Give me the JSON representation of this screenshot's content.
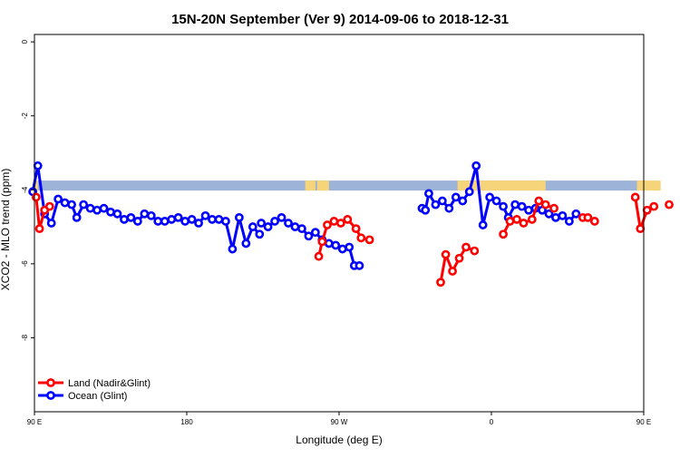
{
  "chart_data": {
    "type": "line",
    "title": "15N-20N September (Ver 9)   2014-09-06 to 2018-12-31",
    "xlabel": "Longitude (deg E)",
    "ylabel": "XCO2 - MLO trend (ppm)",
    "xlim": [
      90,
      450
    ],
    "ylim": [
      -10,
      0.2
    ],
    "x_ticks": [
      {
        "value": 90,
        "label": "90 E"
      },
      {
        "value": 180,
        "label": "180"
      },
      {
        "value": 270,
        "label": "90 W"
      },
      {
        "value": 360,
        "label": "0"
      },
      {
        "value": 450,
        "label": "90 E"
      },
      {
        "value": 540,
        "label": "180"
      }
    ],
    "y_ticks": [
      {
        "value": 0,
        "label": "0"
      },
      {
        "value": -2,
        "label": "-2"
      },
      {
        "value": -4,
        "label": "-4"
      },
      {
        "value": -6,
        "label": "-6"
      },
      {
        "value": -8,
        "label": "-8"
      }
    ],
    "legend_position": "bottom-left",
    "colors": {
      "land": "#ff0000",
      "ocean": "#0000ff",
      "map_ocean": "#9db4d8",
      "map_land": "#f5d47a"
    },
    "land_mask": {
      "y_range": [
        -3.75,
        -4.02
      ],
      "land_x_segments": [
        [
          90,
          92
        ],
        [
          250,
          256
        ],
        [
          257,
          264
        ],
        [
          340,
          392
        ],
        [
          446,
          460
        ]
      ]
    },
    "series": [
      {
        "name": "Land (Nadir&Glint)",
        "key": "land",
        "segments": [
          [
            [
              91,
              -4.2
            ],
            [
              93,
              -5.05
            ],
            [
              96,
              -4.55
            ],
            [
              99,
              -4.45
            ]
          ],
          [
            [
              258,
              -5.8
            ],
            [
              260,
              -5.4
            ],
            [
              263,
              -4.95
            ],
            [
              267,
              -4.85
            ],
            [
              271,
              -4.9
            ],
            [
              275,
              -4.8
            ],
            [
              280,
              -5.05
            ],
            [
              283,
              -5.3
            ],
            [
              288,
              -5.35
            ]
          ],
          [
            [
              330,
              -6.5
            ],
            [
              333,
              -5.75
            ],
            [
              337,
              -6.2
            ],
            [
              341,
              -5.85
            ],
            [
              345,
              -5.55
            ],
            [
              350,
              -5.65
            ]
          ],
          [
            [
              367,
              -5.2
            ],
            [
              371,
              -4.85
            ],
            [
              375,
              -4.8
            ],
            [
              379,
              -4.9
            ],
            [
              384,
              -4.8
            ],
            [
              388,
              -4.3
            ],
            [
              392,
              -4.4
            ],
            [
              397,
              -4.5
            ]
          ],
          [
            [
              414,
              -4.75
            ],
            [
              417,
              -4.75
            ],
            [
              421,
              -4.85
            ]
          ],
          [
            [
              445,
              -4.2
            ],
            [
              448,
              -5.05
            ],
            [
              452,
              -4.55
            ],
            [
              456,
              -4.45
            ]
          ],
          [
            [
              465,
              -4.4
            ]
          ]
        ]
      },
      {
        "name": "Ocean (Glint)",
        "key": "ocean",
        "segments": [
          [
            [
              89,
              -4.05
            ],
            [
              92,
              -3.35
            ],
            [
              96,
              -4.65
            ],
            [
              100,
              -4.9
            ],
            [
              104,
              -4.25
            ],
            [
              108,
              -4.35
            ],
            [
              112,
              -4.4
            ],
            [
              115,
              -4.75
            ],
            [
              119,
              -4.4
            ],
            [
              123,
              -4.5
            ],
            [
              127,
              -4.55
            ],
            [
              131,
              -4.5
            ],
            [
              135,
              -4.6
            ],
            [
              139,
              -4.65
            ],
            [
              143,
              -4.8
            ],
            [
              147,
              -4.75
            ],
            [
              151,
              -4.85
            ],
            [
              155,
              -4.65
            ],
            [
              159,
              -4.7
            ],
            [
              163,
              -4.85
            ],
            [
              167,
              -4.85
            ],
            [
              171,
              -4.8
            ],
            [
              175,
              -4.75
            ],
            [
              179,
              -4.85
            ],
            [
              183,
              -4.8
            ],
            [
              187,
              -4.9
            ],
            [
              191,
              -4.7
            ],
            [
              195,
              -4.8
            ],
            [
              199,
              -4.8
            ],
            [
              203,
              -4.85
            ],
            [
              207,
              -5.6
            ],
            [
              211,
              -4.75
            ],
            [
              215,
              -5.45
            ],
            [
              219,
              -5.0
            ],
            [
              223,
              -5.2
            ]
          ],
          [
            [
              224,
              -4.9
            ],
            [
              228,
              -5.0
            ],
            [
              232,
              -4.85
            ],
            [
              236,
              -4.75
            ],
            [
              240,
              -4.9
            ],
            [
              244,
              -5.0
            ],
            [
              248,
              -5.05
            ],
            [
              252,
              -5.25
            ],
            [
              256,
              -5.15
            ],
            [
              260,
              -5.35
            ],
            [
              264,
              -5.45
            ],
            [
              268,
              -5.5
            ],
            [
              272,
              -5.6
            ],
            [
              276,
              -5.55
            ],
            [
              279,
              -6.05
            ],
            [
              282,
              -6.05
            ]
          ],
          [
            [
              319,
              -4.5
            ],
            [
              321,
              -4.55
            ],
            [
              323,
              -4.1
            ],
            [
              327,
              -4.4
            ],
            [
              331,
              -4.3
            ],
            [
              335,
              -4.5
            ],
            [
              339,
              -4.2
            ],
            [
              343,
              -4.3
            ],
            [
              347,
              -4.05
            ],
            [
              351,
              -3.35
            ],
            [
              355,
              -4.95
            ],
            [
              359,
              -4.2
            ],
            [
              363,
              -4.3
            ],
            [
              367,
              -4.45
            ],
            [
              370,
              -4.75
            ],
            [
              374,
              -4.4
            ],
            [
              378,
              -4.45
            ],
            [
              382,
              -4.55
            ],
            [
              386,
              -4.5
            ],
            [
              390,
              -4.55
            ],
            [
              394,
              -4.65
            ],
            [
              398,
              -4.75
            ],
            [
              402,
              -4.7
            ],
            [
              406,
              -4.85
            ],
            [
              410,
              -4.65
            ]
          ]
        ]
      }
    ]
  }
}
